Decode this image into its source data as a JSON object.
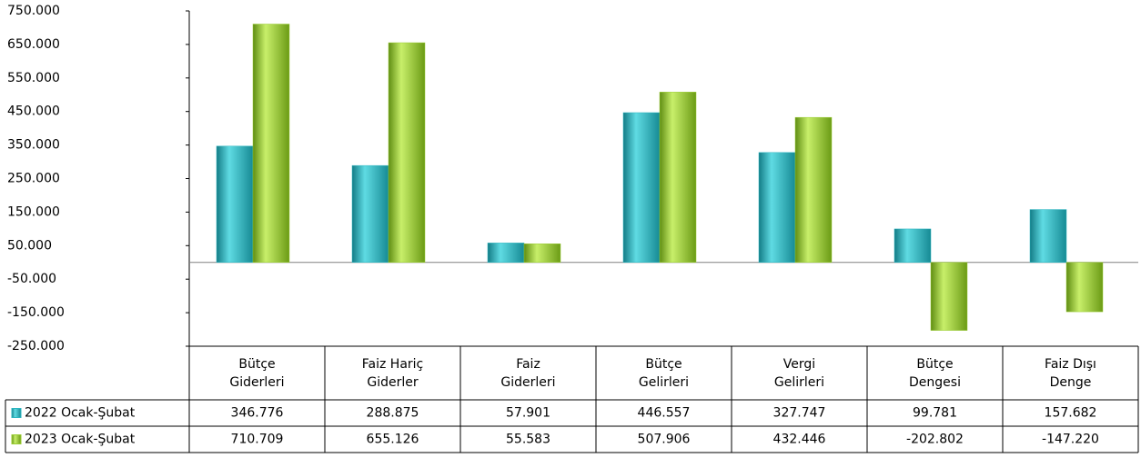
{
  "chart_data": {
    "type": "bar",
    "categories": [
      "Bütçe Giderleri",
      "Faiz Hariç Giderler",
      "Faiz Giderleri",
      "Bütçe Gelirleri",
      "Vergi Gelirleri",
      "Bütçe Dengesi",
      "Faiz Dışı Denge"
    ],
    "series": [
      {
        "name": "2022 Ocak-Şubat",
        "color": "#2bb5c0",
        "values": [
          346776,
          288875,
          57901,
          446557,
          327747,
          99781,
          157682
        ],
        "value_labels": [
          "346.776",
          "288.875",
          "57.901",
          "446.557",
          "327.747",
          "99.781",
          "157.682"
        ]
      },
      {
        "name": "2023 Ocak-Şubat",
        "color": "#9acd32",
        "values": [
          710709,
          655126,
          55583,
          507906,
          432446,
          -202802,
          -147220
        ],
        "value_labels": [
          "710.709",
          "655.126",
          "55.583",
          "507.906",
          "432.446",
          "-202.802",
          "-147.220"
        ]
      }
    ],
    "ylim": [
      -250000,
      750000
    ],
    "yticks": [
      {
        "value": 750000,
        "label": "750.000"
      },
      {
        "value": 650000,
        "label": "650.000"
      },
      {
        "value": 550000,
        "label": "550.000"
      },
      {
        "value": 450000,
        "label": "450.000"
      },
      {
        "value": 350000,
        "label": "350.000"
      },
      {
        "value": 250000,
        "label": "250.000"
      },
      {
        "value": 150000,
        "label": "150.000"
      },
      {
        "value": 50000,
        "label": "50.000"
      },
      {
        "value": -50000,
        "label": "-50.000"
      },
      {
        "value": -150000,
        "label": "-150.000"
      },
      {
        "value": -250000,
        "label": "-250.000"
      }
    ]
  }
}
